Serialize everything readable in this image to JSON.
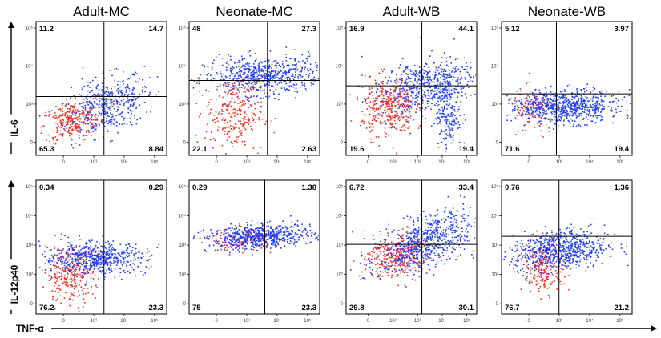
{
  "chart_data": {
    "type": "scatter",
    "colors": {
      "series_red": "#ff2a1a",
      "series_blue": "#1f3cff"
    },
    "column_titles": [
      "Adult-MC",
      "Neonate-MC",
      "Adult-WB",
      "Neonate-WB"
    ],
    "row_labels": [
      "IL-6",
      "IL-12p40"
    ],
    "xlabel": "TNF-α",
    "panels": [
      {
        "row": 0,
        "col": 0,
        "ylabel": "IL-6",
        "title": "Adult-MC",
        "y_ticks": [
          "10⁵",
          "10⁴",
          "10³",
          "0"
        ],
        "x_ticks": [
          "0",
          "10³",
          "10⁴",
          "10⁵"
        ],
        "gate": {
          "x": 2.6,
          "y": 2.2
        },
        "quadrants": {
          "top_left": "11.2",
          "top_right": "14.7",
          "bottom_left": "65.3",
          "bottom_right": "8.84"
        },
        "clouds": [
          {
            "color": "#1f3cff",
            "cx": 2.7,
            "cy": 1.9,
            "sx": 0.9,
            "sy": 0.5,
            "n": 500,
            "rot": 0.35
          },
          {
            "color": "#ff2a1a",
            "cx": 1.3,
            "cy": 1.3,
            "sx": 0.55,
            "sy": 0.35,
            "n": 260,
            "rot": 0.2
          }
        ]
      },
      {
        "row": 0,
        "col": 1,
        "ylabel": "IL-6",
        "title": "Neonate-MC",
        "y_ticks": [
          "10⁵",
          "10⁴",
          "10³",
          "0"
        ],
        "x_ticks": [
          "0",
          "10³",
          "10⁴",
          "10⁵"
        ],
        "gate": {
          "x": 3.0,
          "y": 2.8
        },
        "quadrants": {
          "top_left": "48",
          "top_right": "27.3",
          "bottom_left": "22.1",
          "bottom_right": "2.63"
        },
        "clouds": [
          {
            "color": "#1f3cff",
            "cx": 2.8,
            "cy": 3.0,
            "sx": 1.1,
            "sy": 0.35,
            "n": 650,
            "rot": 0.05
          },
          {
            "color": "#ff2a1a",
            "cx": 1.7,
            "cy": 1.6,
            "sx": 0.55,
            "sy": 0.7,
            "n": 280,
            "rot": 0.0
          }
        ]
      },
      {
        "row": 0,
        "col": 2,
        "ylabel": "IL-6",
        "title": "Adult-WB",
        "y_ticks": [
          "10⁵",
          "10⁴",
          "10³",
          "0"
        ],
        "x_ticks": [
          "0",
          "10²",
          "10³",
          "10⁴",
          "10⁵"
        ],
        "gate": {
          "x": 2.9,
          "y": 2.6
        },
        "quadrants": {
          "top_left": "16.9",
          "top_right": "44.1",
          "bottom_left": "19.6",
          "bottom_right": "19.4"
        },
        "clouds": [
          {
            "color": "#1f3cff",
            "cx": 3.0,
            "cy": 2.6,
            "sx": 1.0,
            "sy": 0.5,
            "n": 650,
            "rot": 0.3
          },
          {
            "color": "#1f3cff",
            "cx": 3.9,
            "cy": 1.5,
            "sx": 0.25,
            "sy": 0.6,
            "n": 160,
            "rot": 0.0
          },
          {
            "color": "#ff2a1a",
            "cx": 1.6,
            "cy": 1.8,
            "sx": 0.5,
            "sy": 0.55,
            "n": 330,
            "rot": 0.0
          }
        ]
      },
      {
        "row": 0,
        "col": 3,
        "ylabel": "IL-6",
        "title": "Neonate-WB",
        "y_ticks": [
          "10⁵",
          "10⁴",
          "10³",
          "0"
        ],
        "x_ticks": [
          "0",
          "10³",
          "10⁴",
          "10⁵"
        ],
        "gate": {
          "x": 2.1,
          "y": 2.3
        },
        "quadrants": {
          "top_left": "5.12",
          "top_right": "3.97",
          "bottom_left": "71.6",
          "bottom_right": "19.4"
        },
        "clouds": [
          {
            "color": "#ff2a1a",
            "cx": 1.2,
            "cy": 1.6,
            "sx": 0.4,
            "sy": 0.45,
            "n": 120,
            "rot": 0.0
          },
          {
            "color": "#1f3cff",
            "cx": 2.4,
            "cy": 1.85,
            "sx": 1.05,
            "sy": 0.3,
            "n": 750,
            "rot": 0.0
          }
        ]
      },
      {
        "row": 1,
        "col": 0,
        "ylabel": "IL-12p40",
        "title": "Adult-MC",
        "y_ticks": [
          "10⁵",
          "10⁴",
          "10³",
          "10²",
          "0"
        ],
        "x_ticks": [
          "0",
          "10³",
          "10⁴",
          "10⁵"
        ],
        "gate": {
          "x": 2.6,
          "y": 2.5
        },
        "quadrants": {
          "top_left": "0.34",
          "top_right": "0.29",
          "bottom_left": "76.2",
          "bottom_right": "23.3"
        },
        "clouds": [
          {
            "color": "#ff2a1a",
            "cx": 1.3,
            "cy": 1.5,
            "sx": 0.45,
            "sy": 0.55,
            "n": 260,
            "rot": 0.0
          },
          {
            "color": "#1f3cff",
            "cx": 2.2,
            "cy": 2.1,
            "sx": 1.0,
            "sy": 0.3,
            "n": 600,
            "rot": 0.0
          }
        ]
      },
      {
        "row": 1,
        "col": 1,
        "ylabel": "IL-12p40",
        "title": "Neonate-MC",
        "y_ticks": [
          "10⁵",
          "10⁴",
          "10³",
          "10²",
          "0"
        ],
        "x_ticks": [
          "0",
          "10³",
          "10⁴",
          "10⁵"
        ],
        "gate": {
          "x": 2.9,
          "y": 3.1
        },
        "quadrants": {
          "top_left": "0.29",
          "top_right": "1.38",
          "bottom_left": "75",
          "bottom_right": "23.3"
        },
        "clouds": [
          {
            "color": "#ff2a1a",
            "cx": 2.0,
            "cy": 2.8,
            "sx": 0.6,
            "sy": 0.2,
            "n": 140,
            "rot": 0.0
          },
          {
            "color": "#1f3cff",
            "cx": 2.7,
            "cy": 2.9,
            "sx": 1.0,
            "sy": 0.22,
            "n": 650,
            "rot": 0.05
          }
        ]
      },
      {
        "row": 1,
        "col": 2,
        "ylabel": "IL-12p40",
        "title": "Adult-WB",
        "y_ticks": [
          "10⁵",
          "10⁴",
          "10³",
          "10²",
          "0"
        ],
        "x_ticks": [
          "0",
          "10²",
          "10³",
          "10⁴",
          "10⁵"
        ],
        "gate": {
          "x": 2.9,
          "y": 2.6
        },
        "quadrants": {
          "top_left": "6.72",
          "top_right": "33.4",
          "bottom_left": "29.8",
          "bottom_right": "30.1"
        },
        "clouds": [
          {
            "color": "#ff2a1a",
            "cx": 1.9,
            "cy": 2.2,
            "sx": 0.6,
            "sy": 0.4,
            "n": 330,
            "rot": 0.25
          },
          {
            "color": "#1f3cff",
            "cx": 3.0,
            "cy": 2.7,
            "sx": 1.0,
            "sy": 0.45,
            "n": 700,
            "rot": 0.4
          }
        ]
      },
      {
        "row": 1,
        "col": 3,
        "ylabel": "IL-12p40",
        "title": "Neonate-WB",
        "y_ticks": [
          "10⁵",
          "10⁴",
          "10³",
          "10²",
          "0"
        ],
        "x_ticks": [
          "0",
          "10³",
          "10⁴",
          "10⁵"
        ],
        "gate": {
          "x": 2.2,
          "y": 2.9
        },
        "quadrants": {
          "top_left": "0.76",
          "top_right": "1.36",
          "bottom_left": "76.7",
          "bottom_right": "21.2"
        },
        "clouds": [
          {
            "color": "#ff2a1a",
            "cx": 1.6,
            "cy": 1.8,
            "sx": 0.4,
            "sy": 0.5,
            "n": 220,
            "rot": 0.0
          },
          {
            "color": "#1f3cff",
            "cx": 2.2,
            "cy": 2.4,
            "sx": 0.9,
            "sy": 0.38,
            "n": 700,
            "rot": 0.1
          }
        ]
      }
    ]
  }
}
